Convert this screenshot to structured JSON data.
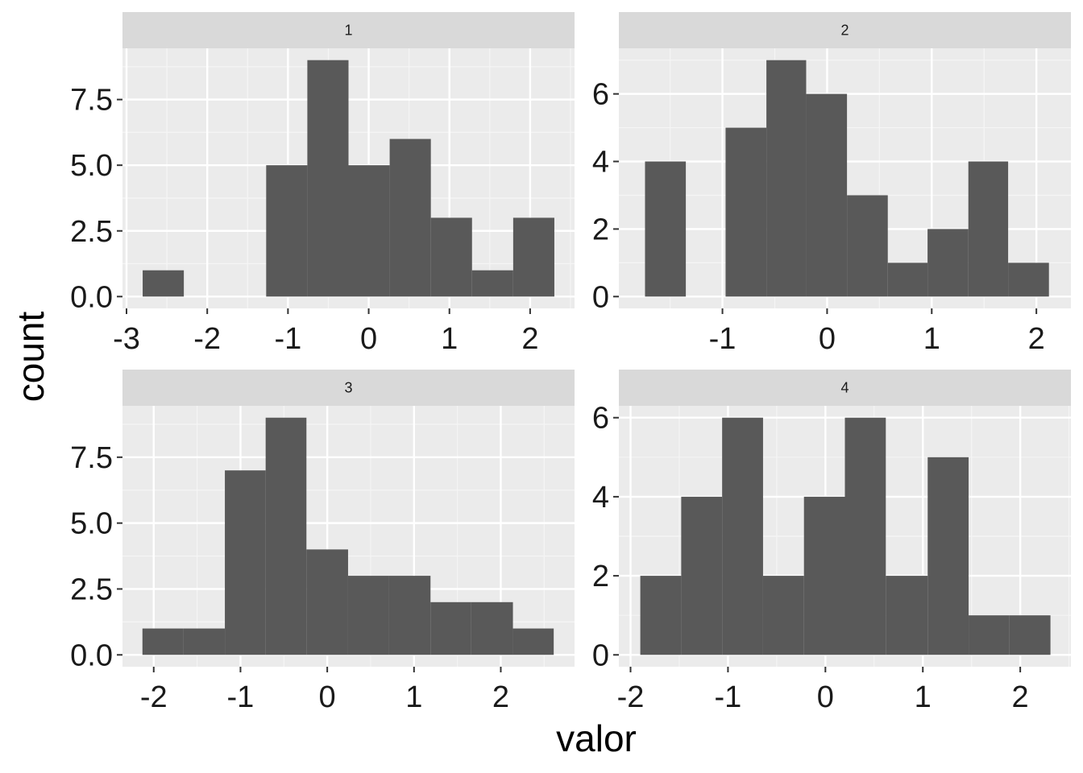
{
  "chart_data": {
    "type": "bar",
    "subtype": "faceted-histogram",
    "xlabel": "valor",
    "ylabel": "count",
    "grid": true,
    "colors": {
      "panel_bg": "#EBEBEB",
      "strip_bg": "#D9D9D9",
      "bar_fill": "#595959",
      "grid_major": "#FFFFFF",
      "grid_minor": "#F5F5F5"
    },
    "facets": [
      {
        "label": "1",
        "xlim": [
          -3.05,
          2.55
        ],
        "ylim": [
          -0.45,
          9.45
        ],
        "xticks": [
          -3,
          -2,
          -1,
          0,
          1,
          2
        ],
        "xtick_labels": [
          "-3",
          "-2",
          "-1",
          "0",
          "1",
          "2"
        ],
        "yticks": [
          0,
          2.5,
          5,
          7.5
        ],
        "ytick_labels": [
          "0.0",
          "2.5",
          "5.0",
          "7.5"
        ],
        "bins": [
          {
            "x0": -2.8,
            "x1": -2.29,
            "count": 1
          },
          {
            "x0": -2.29,
            "x1": -1.78,
            "count": 0
          },
          {
            "x0": -1.78,
            "x1": -1.27,
            "count": 0
          },
          {
            "x0": -1.27,
            "x1": -0.76,
            "count": 5
          },
          {
            "x0": -0.76,
            "x1": -0.25,
            "count": 9
          },
          {
            "x0": -0.25,
            "x1": 0.26,
            "count": 5
          },
          {
            "x0": 0.26,
            "x1": 0.77,
            "count": 6
          },
          {
            "x0": 0.77,
            "x1": 1.28,
            "count": 3
          },
          {
            "x0": 1.28,
            "x1": 1.79,
            "count": 1
          },
          {
            "x0": 1.79,
            "x1": 2.3,
            "count": 3
          }
        ]
      },
      {
        "label": "2",
        "xlim": [
          -1.99,
          2.33
        ],
        "ylim": [
          -0.35,
          7.35
        ],
        "xticks": [
          -1,
          0,
          1,
          2
        ],
        "xtick_labels": [
          "-1",
          "0",
          "1",
          "2"
        ],
        "yticks": [
          0,
          2,
          4,
          6
        ],
        "ytick_labels": [
          "0",
          "2",
          "4",
          "6"
        ],
        "bins": [
          {
            "x0": -1.74,
            "x1": -1.35,
            "count": 4
          },
          {
            "x0": -1.35,
            "x1": -0.97,
            "count": 0
          },
          {
            "x0": -0.97,
            "x1": -0.58,
            "count": 5
          },
          {
            "x0": -0.58,
            "x1": -0.2,
            "count": 7
          },
          {
            "x0": -0.2,
            "x1": 0.19,
            "count": 6
          },
          {
            "x0": 0.19,
            "x1": 0.58,
            "count": 3
          },
          {
            "x0": 0.58,
            "x1": 0.96,
            "count": 1
          },
          {
            "x0": 0.96,
            "x1": 1.35,
            "count": 2
          },
          {
            "x0": 1.35,
            "x1": 1.73,
            "count": 4
          },
          {
            "x0": 1.73,
            "x1": 2.12,
            "count": 1
          }
        ]
      },
      {
        "label": "3",
        "xlim": [
          -2.36,
          2.85
        ],
        "ylim": [
          -0.45,
          9.45
        ],
        "xticks": [
          -2,
          -1,
          0,
          1,
          2
        ],
        "xtick_labels": [
          "-2",
          "-1",
          "0",
          "1",
          "2"
        ],
        "yticks": [
          0,
          2.5,
          5,
          7.5
        ],
        "ytick_labels": [
          "0.0",
          "2.5",
          "5.0",
          "7.5"
        ],
        "bins": [
          {
            "x0": -2.13,
            "x1": -1.66,
            "count": 1
          },
          {
            "x0": -1.66,
            "x1": -1.18,
            "count": 1
          },
          {
            "x0": -1.18,
            "x1": -0.71,
            "count": 7
          },
          {
            "x0": -0.71,
            "x1": -0.24,
            "count": 9
          },
          {
            "x0": -0.24,
            "x1": 0.24,
            "count": 4
          },
          {
            "x0": 0.24,
            "x1": 0.71,
            "count": 3
          },
          {
            "x0": 0.71,
            "x1": 1.19,
            "count": 3
          },
          {
            "x0": 1.19,
            "x1": 1.66,
            "count": 2
          },
          {
            "x0": 1.66,
            "x1": 2.14,
            "count": 2
          },
          {
            "x0": 2.14,
            "x1": 2.61,
            "count": 1
          }
        ]
      },
      {
        "label": "4",
        "xlim": [
          -2.12,
          2.52
        ],
        "ylim": [
          -0.3,
          6.3
        ],
        "xticks": [
          -2,
          -1,
          0,
          1,
          2
        ],
        "xtick_labels": [
          "-2",
          "-1",
          "0",
          "1",
          "2"
        ],
        "yticks": [
          0,
          2,
          4,
          6
        ],
        "ytick_labels": [
          "0",
          "2",
          "4",
          "6"
        ],
        "bins": [
          {
            "x0": -1.9,
            "x1": -1.48,
            "count": 2
          },
          {
            "x0": -1.48,
            "x1": -1.06,
            "count": 4
          },
          {
            "x0": -1.06,
            "x1": -0.64,
            "count": 6
          },
          {
            "x0": -0.64,
            "x1": -0.22,
            "count": 2
          },
          {
            "x0": -0.22,
            "x1": 0.2,
            "count": 4
          },
          {
            "x0": 0.2,
            "x1": 0.62,
            "count": 6
          },
          {
            "x0": 0.62,
            "x1": 1.05,
            "count": 2
          },
          {
            "x0": 1.05,
            "x1": 1.47,
            "count": 5
          },
          {
            "x0": 1.47,
            "x1": 1.89,
            "count": 1
          },
          {
            "x0": 1.89,
            "x1": 2.31,
            "count": 1
          }
        ]
      }
    ]
  }
}
